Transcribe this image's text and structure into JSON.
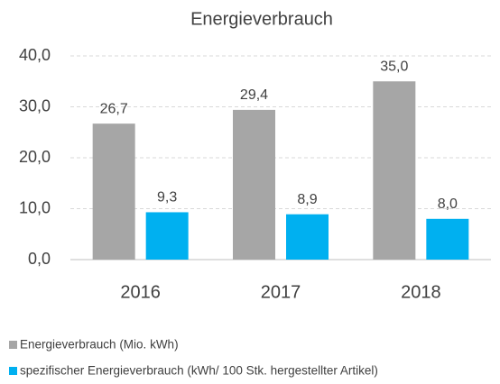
{
  "chart_data": {
    "type": "bar",
    "title": "Energieverbrauch",
    "categories": [
      "2016",
      "2017",
      "2018"
    ],
    "series": [
      {
        "name": "Energieverbrauch (Mio. kWh)",
        "color": "#a6a6a6",
        "values": [
          26.7,
          29.4,
          35.0
        ],
        "value_labels": [
          "26,7",
          "29,4",
          "35,0"
        ]
      },
      {
        "name": "spezifischer Energieverbrauch (kWh/ 100 Stk. hergestellter Artikel)",
        "color": "#00b0f0",
        "values": [
          9.3,
          8.9,
          8.0
        ],
        "value_labels": [
          "9,3",
          "8,9",
          "8,0"
        ]
      }
    ],
    "ylim": [
      0,
      40
    ],
    "yticks": [
      {
        "value": 0,
        "label": "0,0"
      },
      {
        "value": 10,
        "label": "10,0"
      },
      {
        "value": 20,
        "label": "20,0"
      },
      {
        "value": 30,
        "label": "30,0"
      },
      {
        "value": 40,
        "label": "40,0"
      }
    ],
    "grid": true,
    "legend": "bottom"
  }
}
